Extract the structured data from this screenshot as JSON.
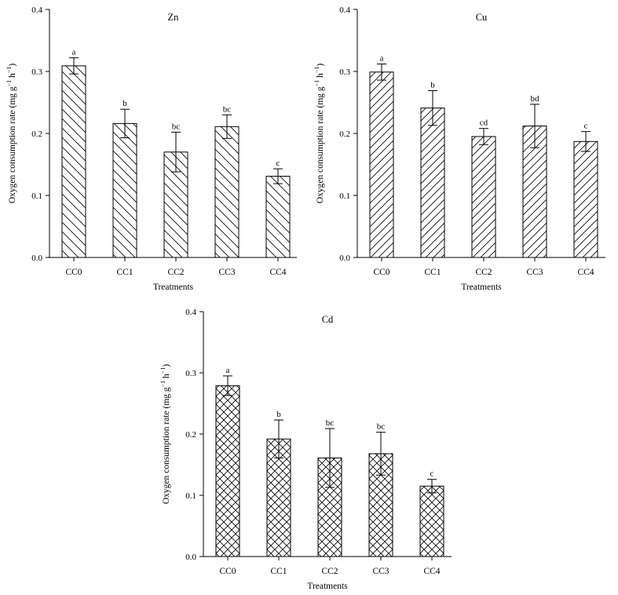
{
  "chart_data": [
    {
      "type": "bar",
      "title": "Zn",
      "xlabel": "Treatments",
      "ylabel": "Oxygen consumption rate (mg g",
      "ylabel_sup1": "−1",
      "ylabel_mid": " h",
      "ylabel_sup2": "−1",
      "ylabel_end": ")",
      "ylim": [
        0,
        0.4
      ],
      "yticks": [
        "0.0",
        "0.1",
        "0.2",
        "0.3",
        "0.4"
      ],
      "categories": [
        "CC0",
        "CC1",
        "CC2",
        "CC3",
        "CC4"
      ],
      "values": [
        0.309,
        0.216,
        0.17,
        0.211,
        0.131
      ],
      "errors": [
        0.013,
        0.023,
        0.032,
        0.019,
        0.012
      ],
      "significance": [
        "a",
        "b",
        "bc",
        "bc",
        "c"
      ],
      "pattern": "backslash-hatch",
      "grid": false
    },
    {
      "type": "bar",
      "title": "Cu",
      "xlabel": "Treatments",
      "ylabel": "Oxygen consumption rate (mg g",
      "ylabel_sup1": "−1",
      "ylabel_mid": " h",
      "ylabel_sup2": "−1",
      "ylabel_end": ")",
      "ylim": [
        0,
        0.4
      ],
      "yticks": [
        "0.0",
        "0.1",
        "0.2",
        "0.3",
        "0.4"
      ],
      "categories": [
        "CC0",
        "CC1",
        "CC2",
        "CC3",
        "CC4"
      ],
      "values": [
        0.299,
        0.241,
        0.195,
        0.212,
        0.187
      ],
      "errors": [
        0.013,
        0.028,
        0.013,
        0.035,
        0.016
      ],
      "significance": [
        "a",
        "b",
        "cd",
        "bd",
        "c"
      ],
      "pattern": "slash-hatch",
      "grid": false
    },
    {
      "type": "bar",
      "title": "Cd",
      "xlabel": "Treatments",
      "ylabel": "Oxygen consumption rate (mg g",
      "ylabel_sup1": "−1",
      "ylabel_mid": " h",
      "ylabel_sup2": "−1",
      "ylabel_end": ")",
      "ylim": [
        0,
        0.4
      ],
      "yticks": [
        "0.0",
        "0.1",
        "0.2",
        "0.3",
        "0.4"
      ],
      "categories": [
        "CC0",
        "CC1",
        "CC2",
        "CC3",
        "CC4"
      ],
      "values": [
        0.279,
        0.192,
        0.161,
        0.168,
        0.115
      ],
      "errors": [
        0.016,
        0.031,
        0.048,
        0.035,
        0.011
      ],
      "significance": [
        "a",
        "b",
        "bc",
        "bc",
        "c"
      ],
      "pattern": "cross-hatch",
      "grid": false
    }
  ]
}
